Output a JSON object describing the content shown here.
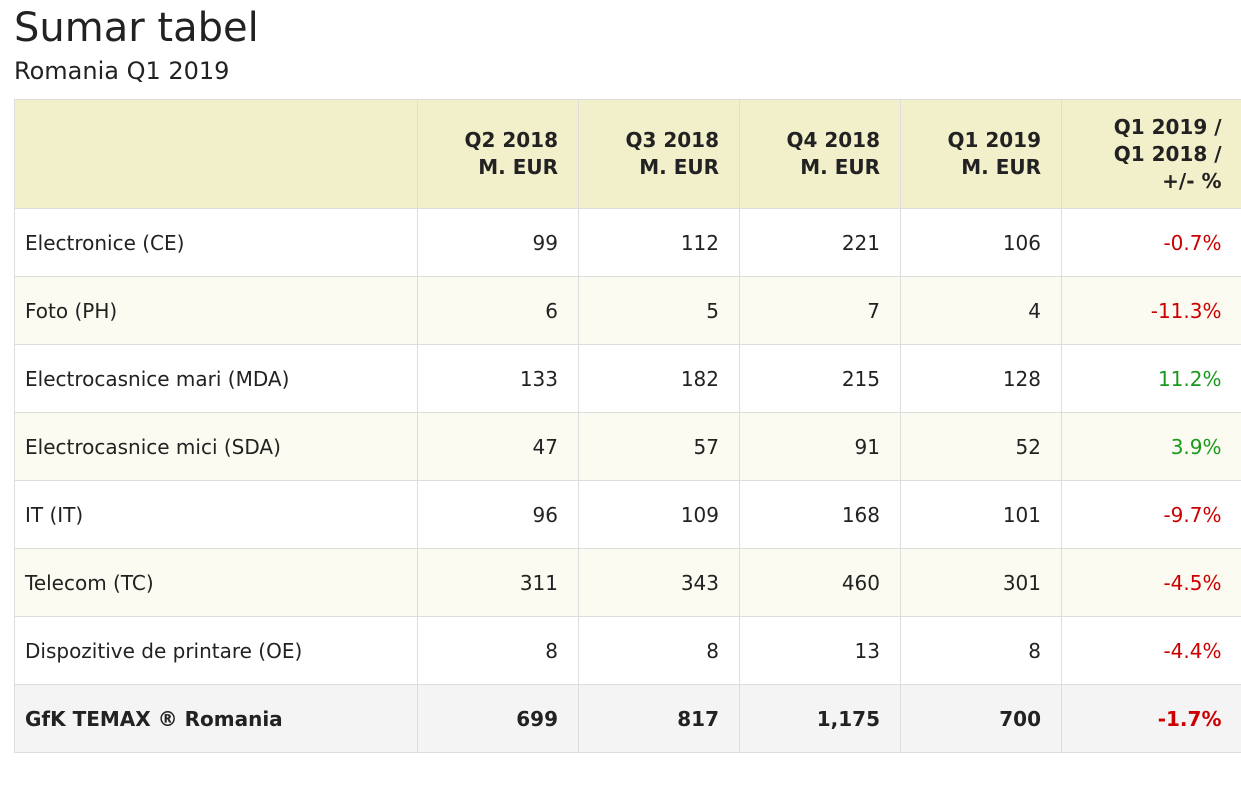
{
  "title": "Sumar tabel",
  "subtitle": "Romania Q1 2019",
  "table": {
    "headers": [
      {
        "lines": [
          ""
        ]
      },
      {
        "lines": [
          "Q2 2018",
          "M. EUR"
        ]
      },
      {
        "lines": [
          "Q3 2018",
          "M. EUR"
        ]
      },
      {
        "lines": [
          "Q4 2018",
          "M. EUR"
        ]
      },
      {
        "lines": [
          "Q1 2019",
          "M. EUR"
        ]
      },
      {
        "lines": [
          "Q1 2019 /",
          "Q1 2018 /",
          "+/- %"
        ]
      }
    ],
    "rows": [
      {
        "label": "Electronice (CE)",
        "q2_2018": "99",
        "q3_2018": "112",
        "q4_2018": "221",
        "q1_2019": "106",
        "change": "-0.7%",
        "trend": "neg"
      },
      {
        "label": "Foto (PH)",
        "q2_2018": "6",
        "q3_2018": "5",
        "q4_2018": "7",
        "q1_2019": "4",
        "change": "-11.3%",
        "trend": "neg"
      },
      {
        "label": "Electrocasnice mari (MDA)",
        "q2_2018": "133",
        "q3_2018": "182",
        "q4_2018": "215",
        "q1_2019": "128",
        "change": "11.2%",
        "trend": "pos"
      },
      {
        "label": "Electrocasnice mici (SDA)",
        "q2_2018": "47",
        "q3_2018": "57",
        "q4_2018": "91",
        "q1_2019": "52",
        "change": "3.9%",
        "trend": "pos"
      },
      {
        "label": "IT (IT)",
        "q2_2018": "96",
        "q3_2018": "109",
        "q4_2018": "168",
        "q1_2019": "101",
        "change": "-9.7%",
        "trend": "neg"
      },
      {
        "label": "Telecom (TC)",
        "q2_2018": "311",
        "q3_2018": "343",
        "q4_2018": "460",
        "q1_2019": "301",
        "change": "-4.5%",
        "trend": "neg"
      },
      {
        "label": "Dispozitive de printare (OE)",
        "q2_2018": "8",
        "q3_2018": "8",
        "q4_2018": "13",
        "q1_2019": "8",
        "change": "-4.4%",
        "trend": "neg"
      }
    ],
    "total": {
      "label": "GfK TEMAX ® Romania",
      "q2_2018": "699",
      "q3_2018": "817",
      "q4_2018": "1,175",
      "q1_2019": "700",
      "change": "-1.7%",
      "trend": "neg"
    }
  },
  "colors": {
    "header_bg": "#f2f0cb",
    "alt_row_bg": "#fbfbf2",
    "total_row_bg": "#f4f4f4",
    "negative": "#cc0000",
    "positive": "#1a9a1a"
  }
}
